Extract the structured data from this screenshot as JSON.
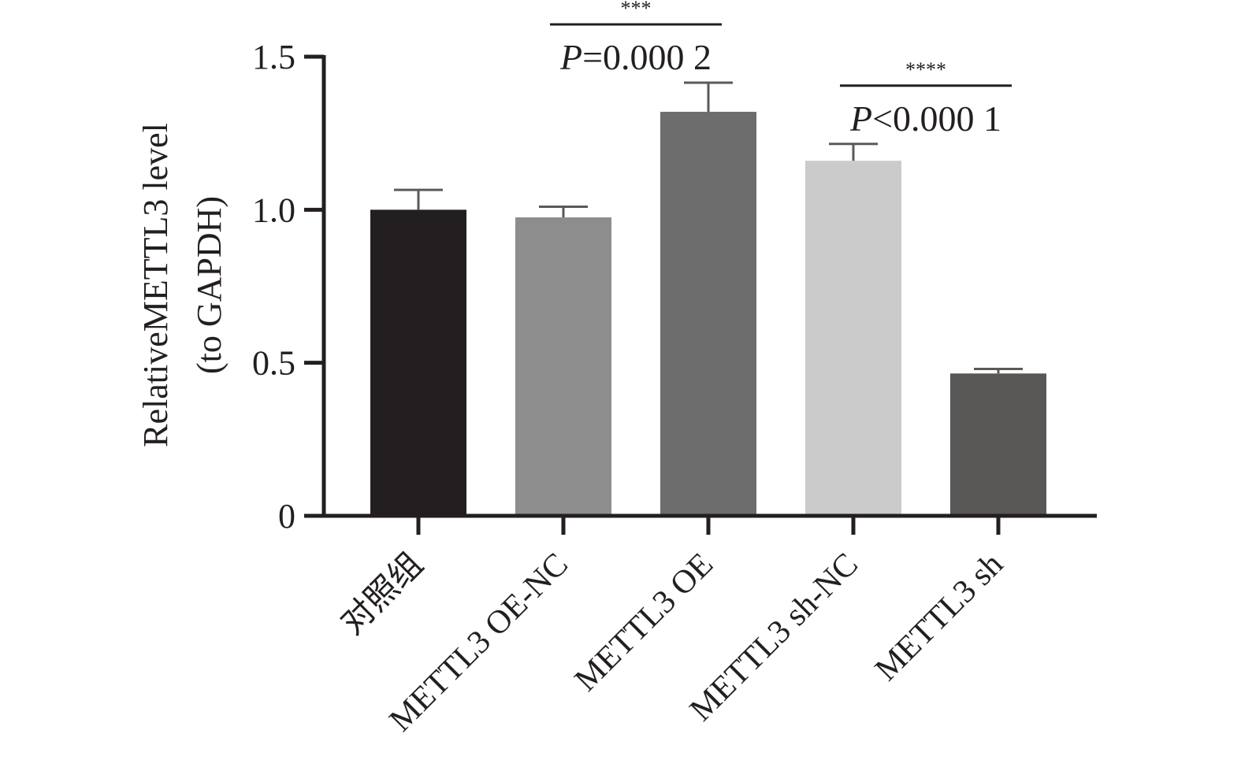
{
  "chart_data": {
    "type": "bar",
    "title": "",
    "ylabel": "RelativeMETTL3 level",
    "ylabel_line2": "(to GAPDH)",
    "xlabel": "",
    "ylim": [
      0,
      1.5
    ],
    "yticks": [
      {
        "value": 0,
        "label": "0"
      },
      {
        "value": 0.5,
        "label": "0.5"
      },
      {
        "value": 1.0,
        "label": "1.0"
      },
      {
        "value": 1.5,
        "label": "1.5"
      }
    ],
    "grid": false,
    "categories": [
      "对照组",
      "METTL3 OE-NC",
      "METTL3 OE",
      "METTL3 sh-NC",
      "METTL3 sh"
    ],
    "values": [
      1.0,
      0.975,
      1.32,
      1.16,
      0.465
    ],
    "errors": [
      0.065,
      0.035,
      0.095,
      0.055,
      0.015
    ],
    "colors": [
      "#231f20",
      "#8e8d8d",
      "#6e6d6d",
      "#cbcbcb",
      "#585756"
    ],
    "comparisons": [
      {
        "from": 1,
        "to": 2,
        "stars": "***",
        "p_italic": "P",
        "p_rest": "=0.000 2"
      },
      {
        "from": 3,
        "to": 4,
        "stars": "****",
        "p_italic": "P",
        "p_rest": "<0.000 1"
      }
    ]
  }
}
